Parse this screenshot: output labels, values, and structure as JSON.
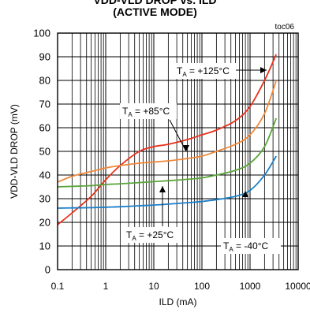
{
  "title_lines": [
    "VDD-VLD DROP vs. ILD",
    "(ACTIVE MODE)"
  ],
  "chart_data": {
    "type": "line",
    "title": "VDD-VLD DROP vs. ILD (ACTIVE MODE)",
    "code": "toc06",
    "xlabel": "ILD (mA)",
    "ylabel": "VDD-VLD DROP (mV)",
    "xscale": "log",
    "xlim": [
      0.1,
      10000
    ],
    "ylim": [
      0,
      100
    ],
    "x_ticks": [
      0.1,
      1,
      10,
      100,
      1000,
      10000
    ],
    "x_tick_labels": [
      "0.1",
      "1",
      "10",
      "100",
      "1000",
      "10000"
    ],
    "y_ticks": [
      0,
      10,
      20,
      30,
      40,
      50,
      60,
      70,
      80,
      90,
      100
    ],
    "grid": true,
    "series": [
      {
        "name": "TA = +125°C",
        "label_main": "T",
        "label_sub": "A",
        "label_rest": " = +125°C",
        "color": "#e8301a",
        "x": [
          0.1,
          0.2,
          0.5,
          1,
          2,
          5,
          10,
          20,
          50,
          100,
          200,
          500,
          1000,
          2000,
          3500
        ],
        "y": [
          19,
          24,
          31,
          38,
          44,
          50,
          52,
          53,
          55,
          57,
          59,
          63,
          69,
          80,
          91
        ]
      },
      {
        "name": "TA = +85°C",
        "label_main": "T",
        "label_sub": "A",
        "label_rest": " = +85°C",
        "color": "#f0883a",
        "x": [
          0.1,
          0.2,
          0.5,
          1,
          2,
          5,
          10,
          20,
          50,
          100,
          200,
          500,
          1000,
          2000,
          3500
        ],
        "y": [
          37,
          39.5,
          41.5,
          43,
          44,
          45,
          45.5,
          46,
          47,
          48,
          50,
          53,
          57,
          66,
          80
        ]
      },
      {
        "name": "TA = +25°C",
        "label_main": "T",
        "label_sub": "A",
        "label_rest": " = +25°C",
        "color": "#5aa53a",
        "x": [
          0.1,
          0.2,
          0.5,
          1,
          2,
          5,
          10,
          20,
          50,
          100,
          200,
          500,
          1000,
          2000,
          3500
        ],
        "y": [
          35,
          35.2,
          35.5,
          36,
          36.3,
          36.8,
          37.2,
          37.6,
          38.2,
          38.8,
          40,
          42,
          45,
          52,
          64
        ]
      },
      {
        "name": "TA = -40°C",
        "label_main": "T",
        "label_sub": "A",
        "label_rest": " = -40°C",
        "color": "#1a7fc8",
        "x": [
          0.1,
          0.2,
          0.5,
          1,
          2,
          5,
          10,
          20,
          50,
          100,
          200,
          500,
          1000,
          2000,
          3500
        ],
        "y": [
          26,
          26.1,
          26.2,
          26.4,
          26.6,
          27,
          27.3,
          27.7,
          28.3,
          28.8,
          29.6,
          31,
          33.5,
          40,
          48
        ]
      }
    ]
  }
}
